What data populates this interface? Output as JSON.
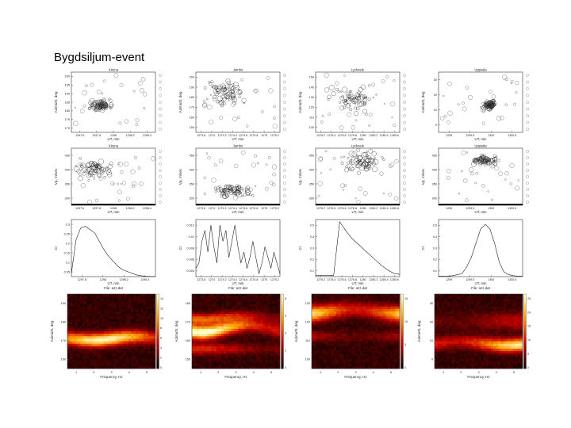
{
  "title": "Bygdsiljum-event",
  "stations": [
    "Kiruna",
    "Jambo",
    "Lycksele",
    "Uppsala"
  ],
  "row1": {
    "ylabel": "Azimuth, deg",
    "panels": [
      {
        "title": "Kiruna",
        "xlabel": "UT, min",
        "xticks": [
          "1297.6",
          "1297.8",
          "1298",
          "1298.2",
          "1298.4"
        ],
        "yticks": [
          "170",
          "175",
          "180",
          "185",
          "190",
          "195",
          "200"
        ],
        "ylim": [
          170,
          200
        ]
      },
      {
        "title": "Jambo",
        "xlabel": "UT, min",
        "xticks": [
          "1273.8",
          "1274",
          "1274.2",
          "1274.4",
          "1274.6",
          "1274.8",
          "1275",
          "1275.2"
        ],
        "yticks": [
          "150",
          "160",
          "170",
          "180",
          "190",
          "200"
        ],
        "ylim": [
          150,
          200
        ]
      },
      {
        "title": "Lycksele",
        "xlabel": "UT, min",
        "xticks": [
          "1276.2",
          "1276.4",
          "1276.6",
          "1276.8",
          "1280",
          "1280.2",
          "1280.4",
          "1280.6"
        ],
        "yticks": [
          "100",
          "110",
          "120",
          "130",
          "140",
          "150"
        ],
        "ylim": [
          100,
          150
        ]
      },
      {
        "title": "Uppsala",
        "xlabel": "UT, min",
        "xticks": [
          "1299",
          "1299.5",
          "1300",
          "1300.5"
        ],
        "yticks": [
          "0",
          "10",
          "20",
          "30"
        ],
        "ylim": [
          0,
          30
        ]
      }
    ]
  },
  "row2": {
    "ylabel": "Vp, m/sec",
    "panels": [
      {
        "title": "Kiruna",
        "xlabel": "UT, min",
        "xticks": [
          "1297.6",
          "1297.8",
          "1298",
          "1298.2",
          "1298.4"
        ],
        "yticks": [
          "300",
          "350",
          "400",
          "450"
        ],
        "ylim": [
          290,
          480
        ]
      },
      {
        "title": "Jambo",
        "xlabel": "UT, min",
        "xticks": [
          "1273.8",
          "1274",
          "1274.2",
          "1274.4",
          "1274.6",
          "1274.8",
          "1275",
          "1275.2"
        ],
        "yticks": [
          "300",
          "350",
          "400",
          "450"
        ],
        "ylim": [
          290,
          480
        ]
      },
      {
        "title": "Lycksele",
        "xlabel": "UT, min",
        "xticks": [
          "1276.2",
          "1276.4",
          "1276.6",
          "1276.8",
          "1280",
          "1280.2",
          "1280.4",
          "1280.6"
        ],
        "yticks": [
          "300",
          "350",
          "400",
          "450"
        ],
        "ylim": [
          290,
          480
        ]
      },
      {
        "title": "Uppsala",
        "xlabel": "UT, min",
        "xticks": [
          "1299",
          "1299.5",
          "1300",
          "1300.5"
        ],
        "yticks": [
          "300",
          "350",
          "400",
          "450"
        ],
        "ylim": [
          290,
          480
        ]
      }
    ]
  },
  "row3": {
    "ylabel": "Cr",
    "panels": [
      {
        "xlabel": "UT, min",
        "file": "File: azz.dat",
        "xticks": [
          "1297.8",
          "1298",
          "1298.2",
          "1298.3"
        ],
        "yticks": [
          "0.05",
          "0.1",
          "0.15",
          "0.2",
          "0.25",
          "0.3"
        ],
        "ylim": [
          0,
          0.34
        ]
      },
      {
        "xlabel": "UT, min",
        "file": "File: azz.dat",
        "xticks": [
          "1273.8",
          "1274",
          "1274.2",
          "1274.4",
          "1274.6",
          "1274.8",
          "1275",
          "1275.2"
        ],
        "yticks": [
          "0.004",
          "0.006",
          "0.008",
          "0.01",
          "0.012"
        ],
        "ylim": [
          0.0025,
          0.013
        ]
      },
      {
        "xlabel": "UT, min",
        "file": "File: azz.dat",
        "xticks": [
          "1276.2",
          "1276.4",
          "1276.6",
          "1276.8",
          "1280",
          "1280.2",
          "1280.4",
          "1280.6"
        ],
        "yticks": [
          "0.1",
          "0.2",
          "0.3",
          "0.4",
          "0.5"
        ],
        "ylim": [
          0,
          0.52
        ]
      },
      {
        "xlabel": "UT, min",
        "file": "File: azz.dat",
        "xticks": [
          "1299",
          "1299.5",
          "1300",
          "1300.5"
        ],
        "yticks": [
          "0.1",
          "0.2",
          "0.3",
          "0.4",
          "0.5"
        ],
        "ylim": [
          0,
          0.6
        ]
      }
    ]
  },
  "row4": {
    "ylabel": "Azimuth, deg",
    "xlabel": "Frequency, Hz",
    "xticks": [
      "1",
      "2",
      "3",
      "4",
      "5"
    ],
    "panels": [
      {
        "yticks": [
          "160",
          "170",
          "180",
          "190"
        ],
        "ylim": [
          158,
          196
        ],
        "cbar": [
          "0",
          "2",
          "4",
          "6",
          "8",
          "10",
          "12",
          "14"
        ],
        "cmax": 14.5
      },
      {
        "yticks": [
          "150",
          "160",
          "170",
          "180"
        ],
        "ylim": [
          148,
          188
        ],
        "cbar": [
          "0",
          "2",
          "4",
          "6",
          "8"
        ],
        "cmax": 9
      },
      {
        "yticks": [
          "100",
          "110",
          "120",
          "130"
        ],
        "ylim": [
          98,
          136
        ],
        "cbar": [
          "0",
          "5",
          "10",
          "15"
        ],
        "cmax": 19
      },
      {
        "yticks": [
          "0",
          "10",
          "20",
          "30"
        ],
        "ylim": [
          -2,
          36
        ],
        "cbar": [
          "0",
          "5",
          "10",
          "15",
          "20",
          "25"
        ],
        "cmax": 27
      }
    ]
  },
  "chart_data": [
    {
      "type": "line",
      "station": "Kiruna",
      "ylabel": "Cr",
      "xlabel": "UT, min",
      "x": [
        1297.74,
        1297.76,
        1297.78,
        1297.8,
        1297.82,
        1297.84,
        1297.86,
        1297.88,
        1297.9,
        1297.92,
        1297.94,
        1297.96,
        1297.98,
        1298,
        1298.04,
        1298.1,
        1298.2,
        1298.3,
        1298.35
      ],
      "y": [
        0.02,
        0.22,
        0.29,
        0.3,
        0.28,
        0.26,
        0.21,
        0.16,
        0.12,
        0.09,
        0.06,
        0.04,
        0.03,
        0.02,
        0.01,
        0.005,
        0.002,
        0.001,
        0.001
      ]
    },
    {
      "type": "line",
      "station": "Jambo",
      "ylabel": "Cr",
      "xlabel": "UT, min",
      "x": [
        1273.78,
        1273.85,
        1273.9,
        1273.95,
        1274,
        1274.05,
        1274.1,
        1274.15,
        1274.2,
        1274.25,
        1274.3,
        1274.35,
        1274.4,
        1274.45,
        1274.5,
        1274.55,
        1274.6,
        1274.65,
        1274.7,
        1274.75,
        1274.8,
        1274.85,
        1274.9,
        1274.95,
        1275,
        1275.05,
        1275.1,
        1275.15,
        1275.2
      ],
      "y": [
        0.004,
        0.005,
        0.009,
        0.011,
        0.007,
        0.012,
        0.008,
        0.005,
        0.012,
        0.009,
        0.011,
        0.006,
        0.009,
        0.012,
        0.008,
        0.005,
        0.007,
        0.004,
        0.006,
        0.009,
        0.006,
        0.003,
        0.005,
        0.008,
        0.006,
        0.004,
        0.007,
        0.005,
        0.003
      ]
    },
    {
      "type": "line",
      "station": "Lycksele",
      "ylabel": "Cr",
      "xlabel": "UT, min",
      "x": [
        1276.2,
        1276.3,
        1276.4,
        1276.6,
        1276.65,
        1276.7,
        1276.8,
        1276.9,
        1280,
        1280.1,
        1280.2,
        1280.3,
        1280.4,
        1280.5,
        1280.6
      ],
      "y": [
        0.01,
        0.01,
        0.01,
        0.01,
        0.5,
        0.42,
        0.35,
        0.3,
        0.25,
        0.2,
        0.15,
        0.1,
        0.06,
        0.03,
        0.02
      ]
    },
    {
      "type": "line",
      "station": "Uppsala",
      "ylabel": "Cr",
      "xlabel": "UT, min",
      "x": [
        1298.9,
        1299,
        1299.2,
        1299.4,
        1299.6,
        1299.8,
        1299.85,
        1299.9,
        1299.95,
        1300,
        1300.05,
        1300.1,
        1300.15,
        1300.2,
        1300.3,
        1300.4,
        1300.5,
        1300.6,
        1300.7
      ],
      "y": [
        0.005,
        0.005,
        0.005,
        0.01,
        0.02,
        0.03,
        0.1,
        0.2,
        0.35,
        0.5,
        0.55,
        0.5,
        0.35,
        0.15,
        0.05,
        0.02,
        0.01,
        0.005,
        0.005
      ]
    }
  ]
}
